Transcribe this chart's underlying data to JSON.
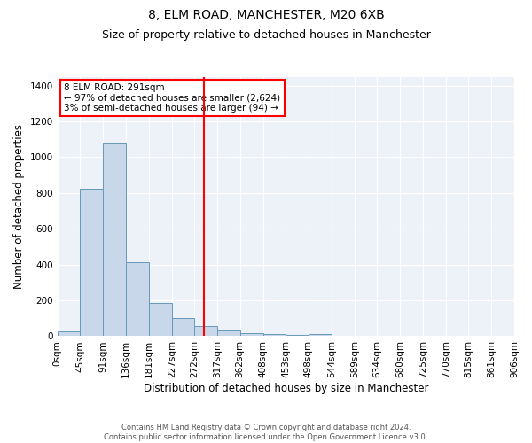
{
  "title": "8, ELM ROAD, MANCHESTER, M20 6XB",
  "subtitle": "Size of property relative to detached houses in Manchester",
  "xlabel": "Distribution of detached houses by size in Manchester",
  "ylabel": "Number of detached properties",
  "bin_labels": [
    "0sqm",
    "45sqm",
    "91sqm",
    "136sqm",
    "181sqm",
    "227sqm",
    "272sqm",
    "317sqm",
    "362sqm",
    "408sqm",
    "453sqm",
    "498sqm",
    "544sqm",
    "589sqm",
    "634sqm",
    "680sqm",
    "725sqm",
    "770sqm",
    "815sqm",
    "861sqm",
    "906sqm"
  ],
  "bin_edges": [
    0,
    45,
    91,
    136,
    181,
    227,
    272,
    317,
    362,
    408,
    453,
    498,
    544,
    589,
    634,
    680,
    725,
    770,
    815,
    861,
    906
  ],
  "actual_heights": [
    25,
    825,
    1080,
    415,
    185,
    100,
    58,
    30,
    15,
    10,
    5,
    12
  ],
  "bar_left_edges": [
    0,
    45,
    91,
    136,
    181,
    227,
    272,
    317,
    362,
    408,
    453,
    498
  ],
  "bar_widths": [
    45,
    46,
    45,
    45,
    46,
    45,
    45,
    45,
    46,
    45,
    45,
    46
  ],
  "bar_color": "#c8d8ea",
  "bar_edge_color": "#6699bb",
  "vline_x": 291,
  "vline_color": "red",
  "annotation_text": "8 ELM ROAD: 291sqm\n← 97% of detached houses are smaller (2,624)\n3% of semi-detached houses are larger (94) →",
  "annotation_box_color": "white",
  "annotation_border_color": "red",
  "ylim": [
    0,
    1450
  ],
  "yticks": [
    0,
    200,
    400,
    600,
    800,
    1000,
    1200,
    1400
  ],
  "xlim": [
    0,
    906
  ],
  "bg_color": "#edf1f8",
  "footer_text": "Contains HM Land Registry data © Crown copyright and database right 2024.\nContains public sector information licensed under the Open Government Licence v3.0.",
  "title_fontsize": 10,
  "subtitle_fontsize": 9,
  "xlabel_fontsize": 8.5,
  "ylabel_fontsize": 8.5,
  "tick_fontsize": 7.5,
  "annotation_fontsize": 7.5
}
